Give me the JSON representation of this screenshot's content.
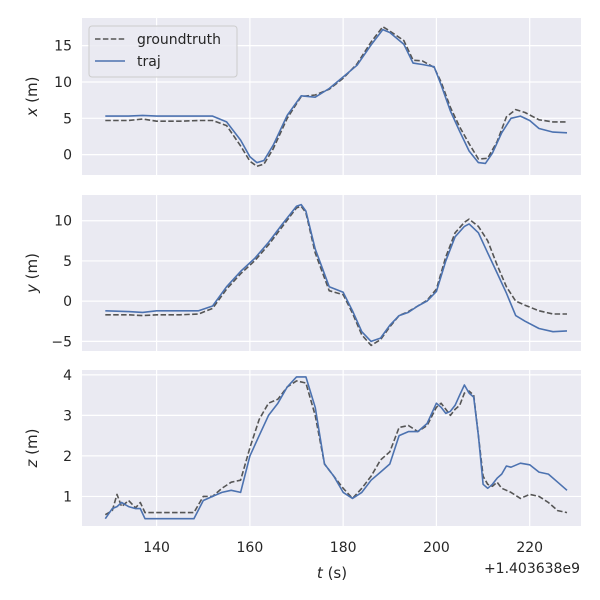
{
  "chart_data": {
    "type": "line",
    "xlabel": "t (s)",
    "xlabel_var": "t",
    "xlabel_unit": " (s)",
    "x_offset_label": "+1.403638e9",
    "xlim": [
      124,
      231
    ],
    "xticks": [
      140,
      160,
      180,
      200,
      220
    ],
    "legend": {
      "placement": "top-left",
      "labels": [
        "groundtruth",
        "traj"
      ]
    },
    "series_styles": {
      "groundtruth": {
        "color": "#555555",
        "dash": "dashed"
      },
      "traj": {
        "color": "#4C72B0",
        "dash": "solid"
      }
    },
    "subplots": [
      {
        "ylabel": "x (m)",
        "ylabel_var": "x",
        "ylabel_unit": " (m)",
        "ylim": [
          -2.8,
          18.8
        ],
        "yticks": [
          0,
          5,
          10,
          15
        ],
        "series": [
          {
            "name": "groundtruth",
            "x": [
              129,
              134,
              137,
              140,
              145,
              149,
              152,
              155,
              158,
              160,
              161.5,
              163,
              165,
              168,
              171,
              174,
              177,
              180,
              183,
              186,
              188.5,
              190,
              193,
              195,
              197,
              199.5,
              201,
              203,
              205,
              207,
              209,
              211,
              213,
              215,
              217,
              219,
              222,
              225,
              228
            ],
            "y": [
              4.7,
              4.7,
              4.9,
              4.6,
              4.6,
              4.7,
              4.7,
              4.0,
              1.2,
              -0.9,
              -1.6,
              -1.3,
              0.8,
              5.0,
              8.0,
              8.2,
              9.0,
              10.5,
              12.5,
              15.5,
              17.6,
              17.0,
              15.7,
              13.0,
              12.9,
              12.0,
              10.0,
              6.5,
              3.8,
              1.5,
              -0.6,
              -0.5,
              1.8,
              5.2,
              6.2,
              5.8,
              4.8,
              4.5,
              4.5
            ]
          },
          {
            "name": "traj",
            "x": [
              129,
              134,
              137,
              140,
              145,
              149,
              152,
              155,
              158,
              160,
              161.5,
              163,
              165,
              168,
              171,
              174,
              177,
              180,
              183,
              186,
              188.5,
              190,
              193,
              195,
              197,
              199.5,
              201,
              203,
              205,
              207,
              209,
              210.5,
              212,
              214,
              216,
              218,
              220,
              222,
              225,
              228
            ],
            "y": [
              5.3,
              5.3,
              5.4,
              5.3,
              5.3,
              5.3,
              5.3,
              4.5,
              2.0,
              -0.3,
              -1.1,
              -0.8,
              1.3,
              5.4,
              8.1,
              7.9,
              9.1,
              10.7,
              12.3,
              15.1,
              17.2,
              16.8,
              15.2,
              12.6,
              12.4,
              12.1,
              9.6,
              6.0,
              3.2,
              0.5,
              -1.1,
              -1.2,
              0.2,
              3.0,
              5.0,
              5.3,
              4.7,
              3.6,
              3.1,
              3.0
            ]
          }
        ]
      },
      {
        "ylabel": "y (m)",
        "ylabel_var": "y",
        "ylabel_unit": " (m)",
        "ylim": [
          -6.2,
          13.2
        ],
        "yticks": [
          -5,
          0,
          5,
          10
        ],
        "series": [
          {
            "name": "groundtruth",
            "x": [
              129,
              134,
              137,
              140,
              145,
              149,
              152,
              155,
              158,
              161,
              164,
              167,
              170,
              171,
              172,
              174,
              177,
              180,
              182,
              184,
              186,
              188,
              190,
              192,
              194,
              196,
              198,
              200,
              202,
              204,
              206,
              207,
              209,
              211,
              213,
              215,
              217,
              219,
              222,
              225,
              228
            ],
            "y": [
              -1.7,
              -1.7,
              -1.8,
              -1.7,
              -1.7,
              -1.6,
              -0.9,
              1.5,
              3.4,
              5.0,
              7.0,
              9.3,
              11.6,
              11.8,
              11.0,
              6.0,
              1.3,
              0.8,
              -1.5,
              -4.2,
              -5.5,
              -4.8,
              -3.2,
              -1.8,
              -1.3,
              -0.6,
              0.1,
              1.5,
              5.5,
              8.5,
              9.8,
              10.2,
              9.3,
              7.5,
              4.5,
              1.8,
              0.0,
              -0.5,
              -1.2,
              -1.6,
              -1.6
            ]
          },
          {
            "name": "traj",
            "x": [
              129,
              134,
              137,
              140,
              145,
              149,
              152,
              155,
              158,
              161,
              164,
              167,
              170,
              171,
              172,
              174,
              177,
              180,
              182,
              184,
              186,
              188,
              190,
              192,
              194,
              196,
              198,
              200,
              202,
              204,
              206,
              207,
              209,
              211,
              213,
              215,
              217,
              219,
              222,
              225,
              228
            ],
            "y": [
              -1.2,
              -1.3,
              -1.4,
              -1.2,
              -1.2,
              -1.2,
              -0.6,
              1.8,
              3.7,
              5.3,
              7.3,
              9.6,
              11.8,
              12.0,
              11.2,
              6.5,
              1.8,
              1.1,
              -1.2,
              -3.8,
              -5.0,
              -4.6,
              -3.0,
              -1.8,
              -1.4,
              -0.6,
              0.0,
              1.2,
              5.0,
              8.0,
              9.3,
              9.6,
              8.5,
              6.0,
              3.5,
              1.0,
              -1.8,
              -2.5,
              -3.4,
              -3.8,
              -3.7
            ]
          }
        ]
      },
      {
        "ylabel": "z (m)",
        "ylabel_var": "z",
        "ylabel_unit": " (m)",
        "ylim": [
          0.27,
          4.12
        ],
        "yticks": [
          1,
          2,
          3,
          4
        ],
        "series": [
          {
            "name": "groundtruth",
            "x": [
              129,
              130.5,
              131.5,
              132.5,
              134,
              135.5,
              136.5,
              137.5,
              140,
              145,
              148,
              150,
              152,
              154,
              156,
              158,
              160,
              162,
              164,
              166,
              168,
              170,
              172,
              174,
              176,
              178,
              180,
              182,
              184,
              186,
              188,
              190,
              192,
              194,
              196,
              198,
              200,
              201,
              202,
              203,
              204,
              205,
              206,
              207,
              208,
              209,
              210,
              211,
              212,
              213,
              214,
              215,
              216,
              218,
              220,
              222,
              224,
              226,
              228
            ],
            "y": [
              0.55,
              0.65,
              1.05,
              0.75,
              0.9,
              0.72,
              0.85,
              0.6,
              0.6,
              0.6,
              0.6,
              1.0,
              1.0,
              1.2,
              1.35,
              1.4,
              2.2,
              2.9,
              3.3,
              3.4,
              3.7,
              3.85,
              3.8,
              3.0,
              1.8,
              1.5,
              1.2,
              0.95,
              1.2,
              1.5,
              1.9,
              2.1,
              2.7,
              2.75,
              2.6,
              2.75,
              3.2,
              3.3,
              3.15,
              3.0,
              3.15,
              3.25,
              3.55,
              3.6,
              3.5,
              2.5,
              1.5,
              1.3,
              1.25,
              1.35,
              1.2,
              1.15,
              1.1,
              0.95,
              1.05,
              1.0,
              0.85,
              0.65,
              0.6
            ]
          },
          {
            "name": "traj",
            "x": [
              129,
              130.5,
              131.5,
              132.5,
              134,
              135.5,
              136.5,
              137.5,
              140,
              145,
              148,
              150,
              152,
              154,
              156,
              158,
              160,
              162,
              164,
              166,
              168,
              170,
              172,
              174,
              176,
              178,
              180,
              182,
              184,
              186,
              188,
              190,
              192,
              194,
              196,
              198,
              200,
              201,
              202,
              203,
              204,
              205,
              206,
              207,
              208,
              209,
              210,
              211,
              212,
              213,
              214,
              215,
              216,
              218,
              220,
              222,
              224,
              226,
              228
            ],
            "y": [
              0.45,
              0.7,
              0.75,
              0.85,
              0.75,
              0.7,
              0.7,
              0.45,
              0.45,
              0.45,
              0.45,
              0.9,
              1.0,
              1.1,
              1.15,
              1.1,
              2.0,
              2.5,
              3.0,
              3.3,
              3.7,
              3.95,
              3.95,
              3.2,
              1.8,
              1.5,
              1.1,
              0.95,
              1.1,
              1.4,
              1.6,
              1.8,
              2.5,
              2.6,
              2.6,
              2.8,
              3.3,
              3.2,
              3.05,
              3.1,
              3.25,
              3.5,
              3.75,
              3.55,
              3.45,
              2.5,
              1.3,
              1.2,
              1.3,
              1.45,
              1.55,
              1.75,
              1.72,
              1.82,
              1.78,
              1.6,
              1.55,
              1.35,
              1.15
            ]
          }
        ]
      }
    ]
  }
}
